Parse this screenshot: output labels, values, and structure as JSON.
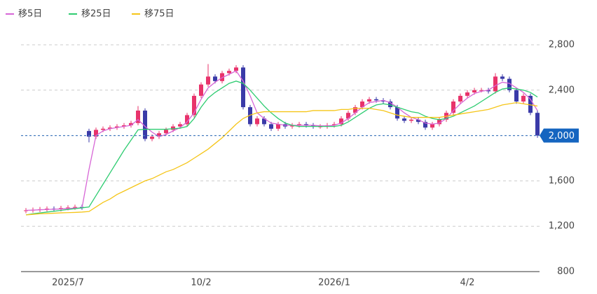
{
  "chart_data": {
    "type": "candlestick",
    "categories": [
      null,
      null,
      null,
      null,
      null,
      null,
      "2025/7",
      null,
      null,
      null,
      null,
      null,
      null,
      null,
      null,
      null,
      null,
      null,
      null,
      null,
      null,
      null,
      null,
      null,
      null,
      "10/2",
      null,
      null,
      null,
      null,
      null,
      null,
      null,
      null,
      null,
      null,
      null,
      null,
      null,
      null,
      null,
      null,
      null,
      null,
      "2026/1",
      null,
      null,
      null,
      null,
      null,
      null,
      null,
      null,
      null,
      null,
      null,
      null,
      null,
      null,
      null,
      null,
      null,
      null,
      "4/2",
      null,
      null,
      null,
      null,
      null,
      null,
      null,
      null,
      null,
      null
    ],
    "open": [
      1335,
      1340,
      1345,
      1350,
      1355,
      1350,
      1360,
      1365,
      1370,
      2040,
      1990,
      2050,
      2060,
      2070,
      2080,
      2090,
      2110,
      2220,
      1970,
      1990,
      2020,
      2050,
      2080,
      2100,
      2180,
      2350,
      2450,
      2520,
      2480,
      2550,
      2570,
      2600,
      2250,
      2100,
      2150,
      2100,
      2060,
      2100,
      2080,
      2090,
      2100,
      2090,
      2080,
      2080,
      2090,
      2100,
      2150,
      2200,
      2250,
      2300,
      2320,
      2310,
      2300,
      2250,
      2150,
      2130,
      2140,
      2120,
      2070,
      2100,
      2140,
      2200,
      2300,
      2350,
      2380,
      2400,
      2400,
      2390,
      2520,
      2500,
      2400,
      2300,
      2350,
      2200
    ],
    "high": [
      1360,
      1365,
      1370,
      1375,
      1375,
      1380,
      1385,
      1390,
      1390,
      2060,
      2070,
      2080,
      2090,
      2100,
      2110,
      2130,
      2260,
      2240,
      2010,
      2040,
      2070,
      2100,
      2120,
      2200,
      2370,
      2470,
      2630,
      2540,
      2570,
      2590,
      2620,
      2620,
      2270,
      2170,
      2170,
      2120,
      2120,
      2120,
      2110,
      2120,
      2120,
      2110,
      2100,
      2110,
      2120,
      2170,
      2220,
      2270,
      2320,
      2340,
      2340,
      2330,
      2320,
      2270,
      2170,
      2160,
      2160,
      2140,
      2120,
      2160,
      2220,
      2320,
      2370,
      2400,
      2420,
      2420,
      2420,
      2550,
      2540,
      2520,
      2420,
      2370,
      2370,
      2220
    ],
    "low": [
      1315,
      1320,
      1325,
      1330,
      1330,
      1330,
      1340,
      1345,
      1345,
      1940,
      1970,
      2030,
      2040,
      2050,
      2060,
      2070,
      2090,
      1950,
      1950,
      1970,
      2000,
      2030,
      2060,
      2080,
      2160,
      2330,
      2430,
      2460,
      2460,
      2530,
      2550,
      2230,
      2080,
      2080,
      2080,
      2040,
      2040,
      2060,
      2060,
      2070,
      2070,
      2060,
      2060,
      2060,
      2070,
      2080,
      2130,
      2180,
      2230,
      2280,
      2290,
      2280,
      2230,
      2130,
      2110,
      2110,
      2100,
      2050,
      2050,
      2080,
      2120,
      2180,
      2280,
      2330,
      2360,
      2380,
      2370,
      2370,
      2480,
      2380,
      2280,
      2280,
      2180,
      1980
    ],
    "close": [
      1340,
      1345,
      1350,
      1355,
      1350,
      1360,
      1365,
      1370,
      1365,
      1990,
      2050,
      2060,
      2070,
      2080,
      2090,
      2110,
      2220,
      1970,
      1990,
      2020,
      2050,
      2080,
      2100,
      2180,
      2350,
      2450,
      2520,
      2480,
      2550,
      2570,
      2600,
      2250,
      2100,
      2150,
      2100,
      2060,
      2100,
      2080,
      2090,
      2100,
      2090,
      2080,
      2080,
      2090,
      2100,
      2150,
      2200,
      2250,
      2300,
      2320,
      2310,
      2300,
      2250,
      2150,
      2130,
      2140,
      2120,
      2070,
      2100,
      2140,
      2200,
      2300,
      2350,
      2380,
      2400,
      2400,
      2390,
      2520,
      2500,
      2400,
      2300,
      2350,
      2200,
      2000
    ],
    "up_color": "#e8336b",
    "down_color": "#3a3aa8",
    "series": [
      {
        "name": "移5日",
        "color": "#d766d6",
        "values": [
          1340,
          1342,
          1345,
          1348,
          1350,
          1352,
          1356,
          1360,
          1362,
          1700,
          2000,
          2040,
          2060,
          2070,
          2080,
          2090,
          2140,
          2080,
          2030,
          1990,
          2010,
          2040,
          2070,
          2120,
          2200,
          2320,
          2420,
          2470,
          2510,
          2540,
          2570,
          2480,
          2350,
          2200,
          2150,
          2110,
          2100,
          2090,
          2090,
          2090,
          2090,
          2090,
          2085,
          2085,
          2090,
          2110,
          2150,
          2200,
          2250,
          2290,
          2300,
          2310,
          2290,
          2250,
          2200,
          2160,
          2140,
          2110,
          2100,
          2110,
          2150,
          2220,
          2280,
          2330,
          2370,
          2390,
          2400,
          2440,
          2470,
          2460,
          2420,
          2380,
          2320,
          2220
        ]
      },
      {
        "name": "移25日",
        "color": "#2ecc71",
        "values": [
          1300,
          1310,
          1318,
          1325,
          1332,
          1340,
          1348,
          1355,
          1362,
          1370,
          1470,
          1570,
          1670,
          1770,
          1870,
          1960,
          2050,
          2055,
          2055,
          2055,
          2055,
          2060,
          2065,
          2080,
          2150,
          2250,
          2330,
          2380,
          2420,
          2460,
          2480,
          2460,
          2400,
          2330,
          2260,
          2200,
          2150,
          2110,
          2090,
          2080,
          2080,
          2080,
          2080,
          2080,
          2080,
          2090,
          2120,
          2160,
          2200,
          2240,
          2270,
          2280,
          2270,
          2250,
          2230,
          2210,
          2200,
          2170,
          2150,
          2140,
          2150,
          2170,
          2200,
          2230,
          2260,
          2300,
          2340,
          2380,
          2410,
          2420,
          2410,
          2400,
          2380,
          2340
        ]
      },
      {
        "name": "移75日",
        "color": "#f5c518",
        "values": [
          1300,
          1305,
          1310,
          1312,
          1315,
          1318,
          1320,
          1322,
          1325,
          1330,
          1370,
          1410,
          1440,
          1480,
          1510,
          1540,
          1570,
          1600,
          1620,
          1650,
          1680,
          1700,
          1730,
          1760,
          1800,
          1840,
          1880,
          1930,
          1980,
          2040,
          2100,
          2150,
          2180,
          2200,
          2210,
          2210,
          2210,
          2210,
          2210,
          2210,
          2210,
          2220,
          2220,
          2220,
          2220,
          2230,
          2230,
          2240,
          2240,
          2240,
          2230,
          2220,
          2200,
          2180,
          2170,
          2160,
          2160,
          2160,
          2160,
          2160,
          2170,
          2180,
          2190,
          2200,
          2210,
          2220,
          2230,
          2250,
          2270,
          2280,
          2290,
          2280,
          2270,
          2260
        ]
      }
    ],
    "ylim": [
      800,
      2800
    ],
    "yticks": [
      {
        "value": 800,
        "label": "800"
      },
      {
        "value": 1200,
        "label": "1,200"
      },
      {
        "value": 1600,
        "label": "1,600"
      },
      {
        "value": 2400,
        "label": "2,400"
      },
      {
        "value": 2800,
        "label": "2,800"
      }
    ],
    "grid": true,
    "current_price": {
      "value": 2000,
      "label": "2,000"
    }
  }
}
